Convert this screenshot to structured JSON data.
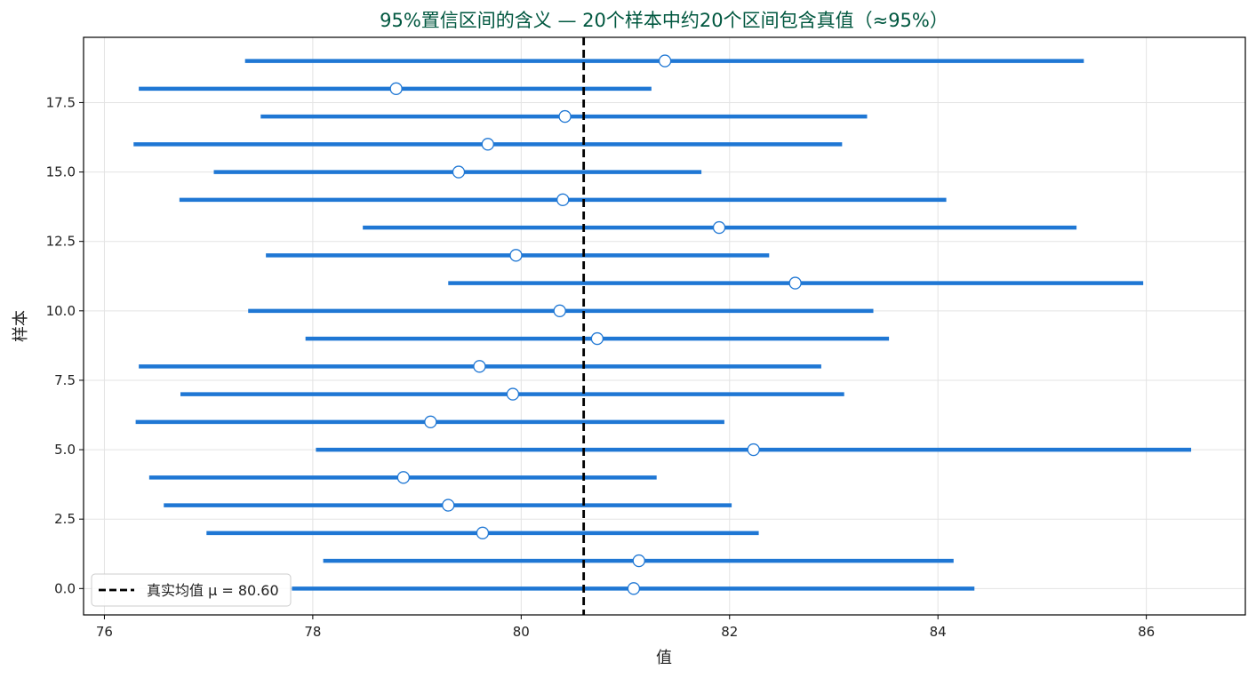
{
  "chart_data": {
    "type": "scatter",
    "title": "95%置信区间的含义 — 20个样本中约20个区间包含真值（≈95%）",
    "xlabel": "值",
    "ylabel": "样本",
    "xlim": [
      75.8,
      86.95
    ],
    "ylim": [
      -0.95,
      19.85
    ],
    "xticks": [
      76,
      78,
      80,
      82,
      84,
      86
    ],
    "xtick_labels": [
      "76",
      "78",
      "80",
      "82",
      "84",
      "86"
    ],
    "yticks": [
      0,
      2.5,
      5,
      7.5,
      10,
      12.5,
      15,
      17.5
    ],
    "ytick_labels": [
      "0.0",
      "2.5",
      "5.0",
      "7.5",
      "10.0",
      "12.5",
      "15.0",
      "17.5"
    ],
    "grid": true,
    "legend_position": "bottom-left",
    "true_mean": 80.6,
    "legend_label": "真实均值 μ = 80.60",
    "intervals": [
      {
        "sample": 0,
        "mean": 81.08,
        "lower": 77.8,
        "upper": 84.35
      },
      {
        "sample": 1,
        "mean": 81.13,
        "lower": 78.1,
        "upper": 84.15
      },
      {
        "sample": 2,
        "mean": 79.63,
        "lower": 76.98,
        "upper": 82.28
      },
      {
        "sample": 3,
        "mean": 79.3,
        "lower": 76.57,
        "upper": 82.02
      },
      {
        "sample": 4,
        "mean": 78.87,
        "lower": 76.43,
        "upper": 81.3
      },
      {
        "sample": 5,
        "mean": 82.23,
        "lower": 78.03,
        "upper": 86.43
      },
      {
        "sample": 6,
        "mean": 79.13,
        "lower": 76.3,
        "upper": 81.95
      },
      {
        "sample": 7,
        "mean": 79.92,
        "lower": 76.73,
        "upper": 83.1
      },
      {
        "sample": 8,
        "mean": 79.6,
        "lower": 76.33,
        "upper": 82.88
      },
      {
        "sample": 9,
        "mean": 80.73,
        "lower": 77.93,
        "upper": 83.53
      },
      {
        "sample": 10,
        "mean": 80.37,
        "lower": 77.38,
        "upper": 83.38
      },
      {
        "sample": 11,
        "mean": 82.63,
        "lower": 79.3,
        "upper": 85.97
      },
      {
        "sample": 12,
        "mean": 79.95,
        "lower": 77.55,
        "upper": 82.38
      },
      {
        "sample": 13,
        "mean": 81.9,
        "lower": 78.48,
        "upper": 85.33
      },
      {
        "sample": 14,
        "mean": 80.4,
        "lower": 76.72,
        "upper": 84.08
      },
      {
        "sample": 15,
        "mean": 79.4,
        "lower": 77.05,
        "upper": 81.73
      },
      {
        "sample": 16,
        "mean": 79.68,
        "lower": 76.28,
        "upper": 83.08
      },
      {
        "sample": 17,
        "mean": 80.42,
        "lower": 77.5,
        "upper": 83.32
      },
      {
        "sample": 18,
        "mean": 78.8,
        "lower": 76.33,
        "upper": 81.25
      },
      {
        "sample": 19,
        "mean": 81.38,
        "lower": 77.35,
        "upper": 85.4
      }
    ],
    "colors": {
      "interval": "#1f77d4",
      "marker_fill": "#ffffff",
      "mean_line": "#000000",
      "title": "#00573f"
    }
  }
}
